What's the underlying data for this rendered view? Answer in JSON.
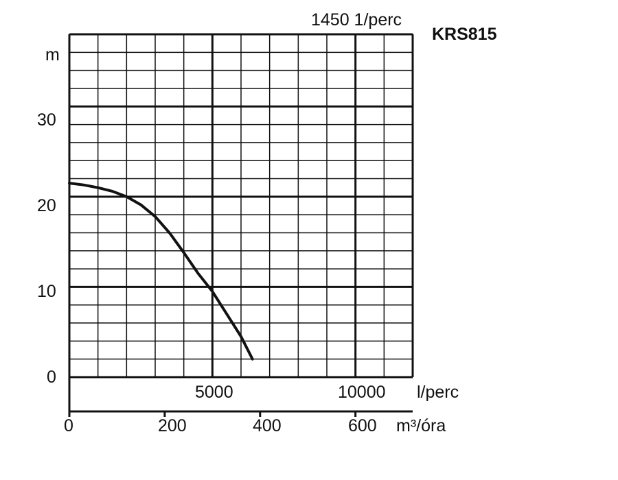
{
  "chart_data": {
    "type": "line",
    "title": "KRS815",
    "speed_label": "1450 1/perc",
    "ylabel": "m",
    "ylim": [
      0,
      38
    ],
    "yticks": [
      0,
      10,
      20,
      30
    ],
    "x_primary": {
      "unit": "l/perc",
      "range": [
        0,
        12000
      ],
      "ticks": [
        5000,
        10000
      ]
    },
    "x_secondary": {
      "unit": "m³/óra",
      "ticks": [
        0,
        200,
        400,
        600
      ]
    },
    "grid": true,
    "series": [
      {
        "x": [
          0,
          500,
          1000,
          1500,
          2000,
          2500,
          3000,
          3500,
          4000,
          4500,
          5000,
          5500,
          6000,
          6400
        ],
        "values": [
          21.5,
          21.3,
          21.0,
          20.6,
          20.0,
          19.1,
          17.8,
          16.0,
          13.8,
          11.5,
          9.5,
          7.0,
          4.5,
          2.0
        ]
      }
    ]
  }
}
